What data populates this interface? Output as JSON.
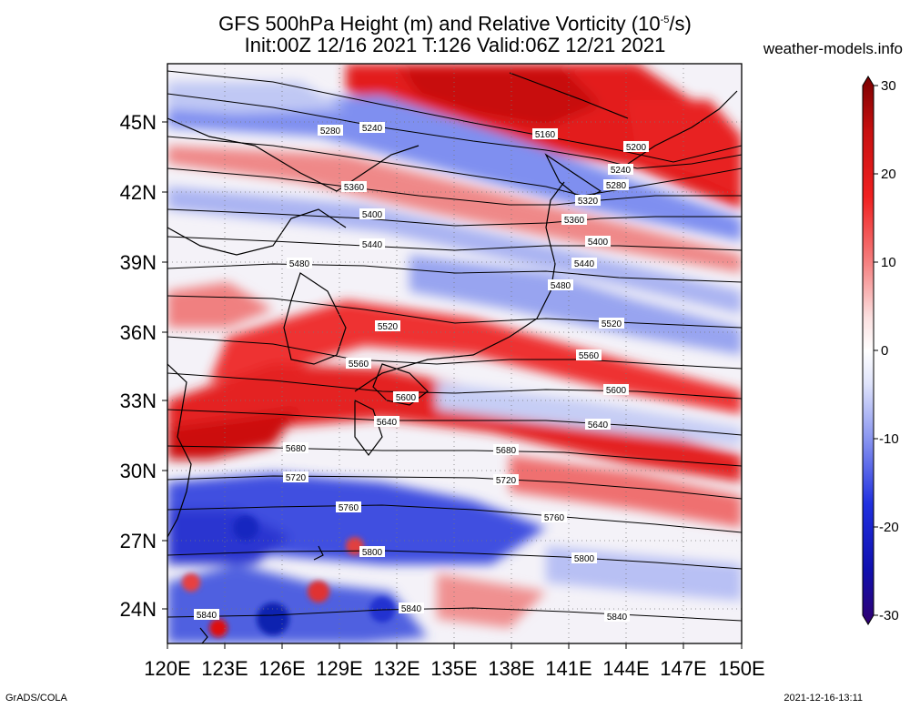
{
  "title_line1": "GFS 500hPa Height (m) and Relative Vorticity (10",
  "title_line1_exp": "-5",
  "title_line1_end": "/s)",
  "title_line2": "Init:00Z 12/16 2021 T:126 Valid:06Z 12/21 2021",
  "site": "weather-models.info",
  "footer_left": "GrADS/COLA",
  "footer_right": "2021-12-16-13:11",
  "lat_labels": [
    "45N",
    "42N",
    "39N",
    "36N",
    "33N",
    "30N",
    "27N",
    "24N"
  ],
  "lon_labels": [
    "120E",
    "123E",
    "126E",
    "129E",
    "132E",
    "135E",
    "138E",
    "141E",
    "144E",
    "147E",
    "150E"
  ],
  "colorbar": {
    "ticks": [
      "30",
      "20",
      "10",
      "0",
      "-10",
      "-20",
      "-30"
    ],
    "colors": [
      "#7a0000",
      "#c81010",
      "#f02020",
      "#f58080",
      "#fbe0e0",
      "#ffffff",
      "#e0e4fb",
      "#8a96f0",
      "#2030e0",
      "#1010b0",
      "#300070"
    ]
  },
  "contour_labels": [
    "5160",
    "5200",
    "5240",
    "5240",
    "5280",
    "5280",
    "5320",
    "5360",
    "5360",
    "5400",
    "5400",
    "5440",
    "5440",
    "5480",
    "5480",
    "5520",
    "5520",
    "5560",
    "5560",
    "5600",
    "5600",
    "5640",
    "5640",
    "5680",
    "5680",
    "5720",
    "5720",
    "5760",
    "5760",
    "5800",
    "5800",
    "5840",
    "5840",
    "5840"
  ]
}
